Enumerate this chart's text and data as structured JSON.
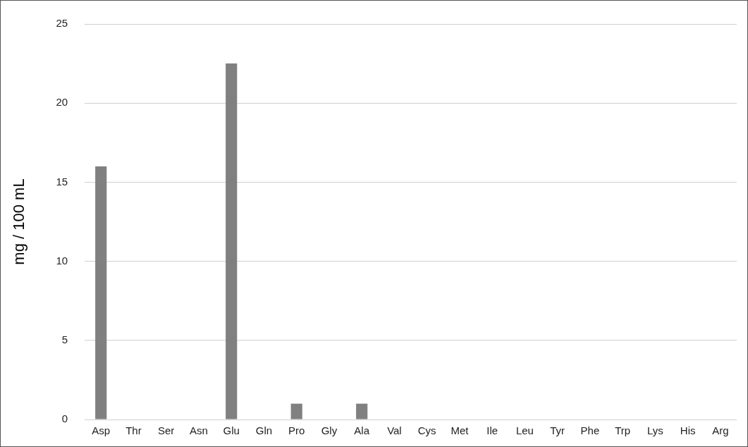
{
  "chart_data": {
    "type": "bar",
    "ylabel": "mg / 100 mL",
    "categories": [
      "Asp",
      "Thr",
      "Ser",
      "Asn",
      "Glu",
      "Gln",
      "Pro",
      "Gly",
      "Ala",
      "Val",
      "Cys",
      "Met",
      "Ile",
      "Leu",
      "Tyr",
      "Phe",
      "Trp",
      "Lys",
      "His",
      "Arg"
    ],
    "values": [
      16,
      0,
      0,
      0,
      22.5,
      0,
      1,
      0,
      1,
      0,
      0,
      0,
      0,
      0,
      0,
      0,
      0,
      0,
      0,
      0
    ],
    "color": "#808080",
    "ylim": [
      0,
      25
    ],
    "yticks": [
      0,
      5,
      10,
      15,
      20,
      25
    ],
    "grid": "y",
    "legend": false
  }
}
